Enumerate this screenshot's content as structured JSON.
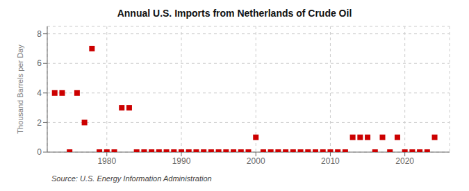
{
  "chart_data": {
    "type": "scatter",
    "title": "Annual U.S. Imports from Netherlands of Crude Oil",
    "ylabel": "Thousand Barrels per Day",
    "annotations": [
      "Source: U.S. Energy Information Administration"
    ],
    "x": [
      1973,
      1974,
      1975,
      1976,
      1977,
      1978,
      1979,
      1980,
      1981,
      1982,
      1983,
      1984,
      1985,
      1986,
      1987,
      1988,
      1989,
      1990,
      1991,
      1992,
      1993,
      1994,
      1995,
      1996,
      1997,
      1998,
      1999,
      2000,
      2001,
      2002,
      2003,
      2004,
      2005,
      2006,
      2007,
      2008,
      2009,
      2010,
      2011,
      2012,
      2013,
      2014,
      2015,
      2016,
      2017,
      2018,
      2019,
      2020,
      2021,
      2022,
      2023,
      2024
    ],
    "values": [
      4,
      4,
      0,
      4,
      2,
      7,
      0,
      0,
      0,
      3,
      3,
      0,
      0,
      0,
      0,
      0,
      0,
      0,
      0,
      0,
      0,
      0,
      0,
      0,
      0,
      0,
      0,
      1,
      0,
      0,
      0,
      0,
      0,
      0,
      0,
      0,
      0,
      0,
      0,
      0,
      1,
      1,
      1,
      0,
      1,
      0,
      1,
      0,
      0,
      0,
      0,
      1
    ],
    "color": "#cc0000",
    "marker": "square",
    "xlim": [
      1972,
      2026
    ],
    "xticks": [
      1980,
      1990,
      2000,
      2010,
      2020
    ],
    "ylim": [
      0,
      8.5
    ],
    "yticks": [
      0,
      2,
      4,
      6,
      8
    ],
    "grid": true
  }
}
